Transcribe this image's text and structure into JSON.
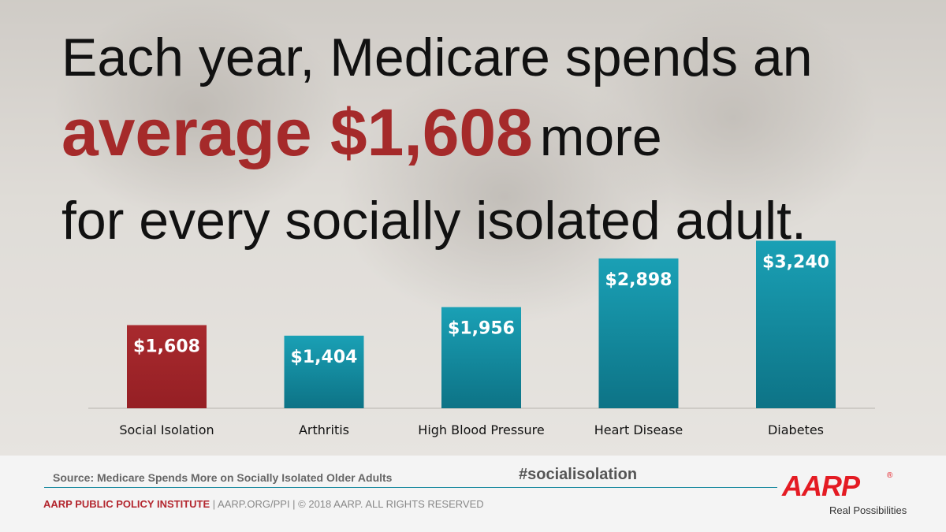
{
  "headline": {
    "line1": "Each year, Medicare spends an",
    "line2_emphasis": "average $1,608",
    "line2_tail": "more",
    "line3": "for every socially isolated adult."
  },
  "colors": {
    "highlight_bar": "#a52a2a",
    "bar": "#138ea3",
    "headline_accent": "#a52a2a",
    "aarp_red": "#e41b23"
  },
  "chart_data": {
    "type": "bar",
    "categories": [
      "Social Isolation",
      "Arthritis",
      "High Blood Pressure",
      "Heart Disease",
      "Diabetes"
    ],
    "values": [
      1608,
      1404,
      1956,
      2898,
      3240
    ],
    "value_labels": [
      "$1,608",
      "$1,404",
      "$1,956",
      "$2,898",
      "$3,240"
    ],
    "highlight": "Social Isolation",
    "ylim": [
      0,
      3900
    ],
    "grid": false,
    "legend": "none",
    "xlabel": "",
    "ylabel": ""
  },
  "footer": {
    "source": "Source: Medicare Spends More on Socially Isolated Older Adults",
    "hashtag": "#socialisolation",
    "org": "AARP PUBLIC POLICY INSTITUTE",
    "credits_rest": " | AARP.ORG/PPI | © 2018 AARP. ALL RIGHTS RESERVED",
    "logo_text": "AARP",
    "logo_reg": "®",
    "logo_tagline": "Real Possibilities"
  }
}
